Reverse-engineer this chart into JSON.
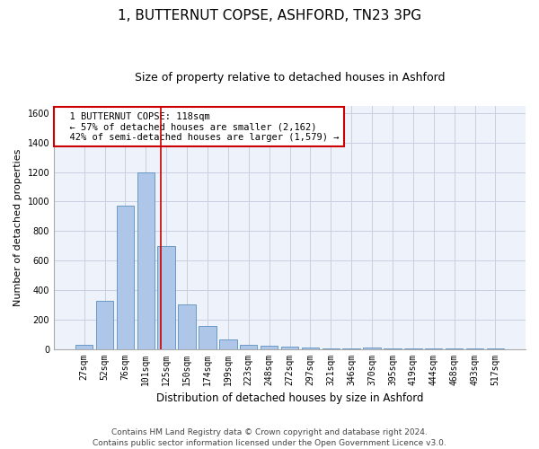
{
  "title": "1, BUTTERNUT COPSE, ASHFORD, TN23 3PG",
  "subtitle": "Size of property relative to detached houses in Ashford",
  "xlabel": "Distribution of detached houses by size in Ashford",
  "ylabel": "Number of detached properties",
  "categories": [
    "27sqm",
    "52sqm",
    "76sqm",
    "101sqm",
    "125sqm",
    "150sqm",
    "174sqm",
    "199sqm",
    "223sqm",
    "248sqm",
    "272sqm",
    "297sqm",
    "321sqm",
    "346sqm",
    "370sqm",
    "395sqm",
    "419sqm",
    "444sqm",
    "468sqm",
    "493sqm",
    "517sqm"
  ],
  "values": [
    25,
    325,
    975,
    1200,
    700,
    300,
    155,
    65,
    25,
    20,
    15,
    10,
    5,
    2,
    10,
    2,
    2,
    2,
    2,
    2,
    5
  ],
  "bar_color": "#aec6e8",
  "bar_edge_color": "#5a8fc0",
  "vline_x": 3.72,
  "vline_color": "#cc0000",
  "annotation_lines": [
    "  1 BUTTERNUT COPSE: 118sqm",
    "  ← 57% of detached houses are smaller (2,162)",
    "  42% of semi-detached houses are larger (1,579) →"
  ],
  "annotation_box_color": "#cc0000",
  "ylim": [
    0,
    1650
  ],
  "yticks": [
    0,
    200,
    400,
    600,
    800,
    1000,
    1200,
    1400,
    1600
  ],
  "grid_color": "#c8d0e0",
  "bg_color": "#eef2fb",
  "footer": "Contains HM Land Registry data © Crown copyright and database right 2024.\nContains public sector information licensed under the Open Government Licence v3.0.",
  "title_fontsize": 11,
  "subtitle_fontsize": 9,
  "xlabel_fontsize": 8.5,
  "ylabel_fontsize": 8,
  "tick_fontsize": 7,
  "footer_fontsize": 6.5,
  "annot_fontsize": 7.5
}
